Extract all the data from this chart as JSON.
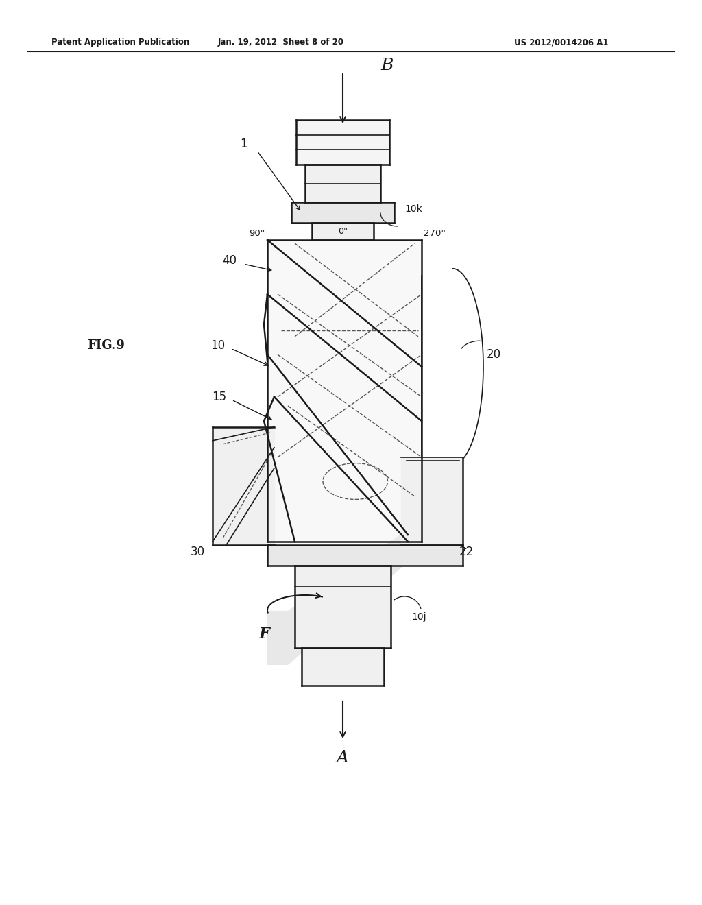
{
  "title_left": "Patent Application Publication",
  "title_mid": "Jan. 19, 2012  Sheet 8 of 20",
  "title_right": "US 2012/0014206 A1",
  "fig_label": "FIG.9",
  "bg_color": "#ffffff",
  "line_color": "#1a1a1a",
  "dashed_color": "#555555",
  "label_1": "1",
  "label_10": "10",
  "label_10k": "10k",
  "label_10j": "10j",
  "label_15": "15",
  "label_20": "20",
  "label_22": "22",
  "label_30": "30",
  "label_40": "40",
  "label_B": "B",
  "label_A": "A",
  "label_F": "F",
  "label_0deg": "0°",
  "label_90deg": "90°",
  "label_270deg": "270°"
}
